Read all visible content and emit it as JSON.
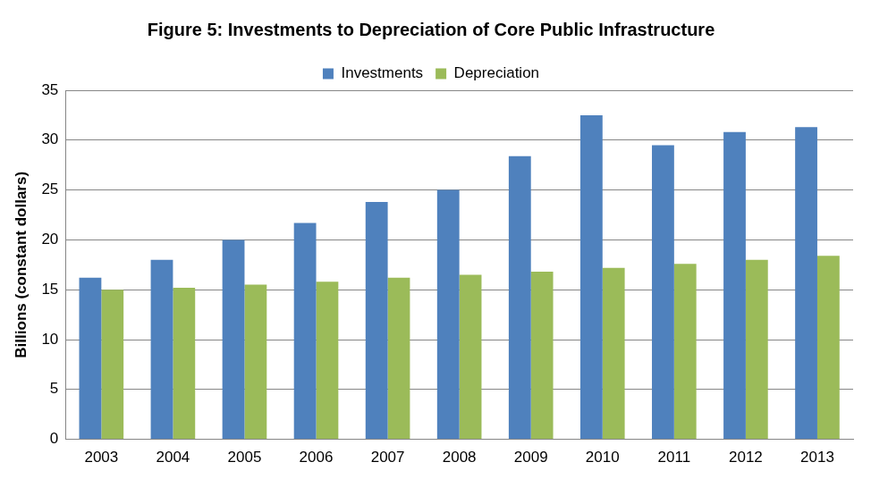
{
  "chart_data": {
    "type": "bar",
    "title": "Figure 5: Investments to Depreciation of Core Public Infrastructure",
    "y_label": "Billions (constant dollars)",
    "categories": [
      "2003",
      "2004",
      "2005",
      "2006",
      "2007",
      "2008",
      "2009",
      "2010",
      "2011",
      "2012",
      "2013"
    ],
    "series": [
      {
        "name": "Investments",
        "color": "#4f81bd",
        "values": [
          16.2,
          18.0,
          20.0,
          21.7,
          23.8,
          25.0,
          28.4,
          32.5,
          29.5,
          30.8,
          31.3
        ]
      },
      {
        "name": "Depreciation",
        "color": "#9bbb59",
        "values": [
          15.0,
          15.2,
          15.5,
          15.8,
          16.2,
          16.5,
          16.8,
          17.2,
          17.6,
          18.0,
          18.4
        ]
      }
    ],
    "ylim": [
      0,
      35
    ],
    "yticks": [
      0,
      5,
      10,
      15,
      20,
      25,
      30,
      35
    ],
    "grid": true,
    "legend": "top"
  }
}
